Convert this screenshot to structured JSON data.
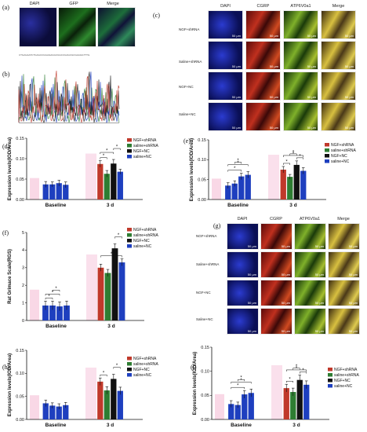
{
  "panels": {
    "a": {
      "label": "(a)",
      "headers": [
        "DAPI",
        "GFP",
        "Merge"
      ]
    },
    "b": {
      "label": "(b)",
      "sequence_text": "CTGAGAATCTGAGCCGGAGAGGCGGCCGAGCGCGAAGGTTTG"
    },
    "c": {
      "label": "(c)",
      "headers": [
        "DAPI",
        "CGRP",
        "ATP6V0a1",
        "Merge"
      ],
      "rows": [
        "NGF+shRNA",
        "Saline+shRNA",
        "NGF+NC",
        "Saline+NC"
      ],
      "scale_text": "50 μm"
    },
    "g": {
      "label": "(g)",
      "headers": [
        "DAPI",
        "CGRP",
        "ATP6V0a1",
        "Merge"
      ],
      "rows": [
        "NGF+shRNA",
        "Saline+shRNA",
        "NGF+NC",
        "Saline+NC"
      ],
      "scale_text": "50 μm"
    }
  },
  "colors": {
    "NGF+shRNA": "#c0392b",
    "saline+shRNA": "#2e7d32",
    "NGF+NC": "#111111",
    "saline+NC": "#1e3fbf",
    "baseline_bar": "#1e3fbf",
    "baseline_bg": "#f6c7dc"
  },
  "chart_data": [
    {
      "id": "d",
      "label": "(d)",
      "type": "bar",
      "ylabel": "Expression levels(IOD/Area)",
      "ylim": [
        0,
        0.15
      ],
      "yticks": [
        0.0,
        0.05,
        0.1,
        0.15
      ],
      "ytick_labels": [
        "0.00",
        "0.05",
        "0.10",
        "0.15"
      ],
      "categories": [
        "Baseline",
        "3 d"
      ],
      "legend": [
        "NGF+shRNA",
        "saline+shRNA",
        "NGF+NC",
        "saline+NC"
      ],
      "series": [
        {
          "name": "NGF+shRNA",
          "values": [
            0.037,
            0.087
          ],
          "errors": [
            0.007,
            0.008
          ]
        },
        {
          "name": "saline+shRNA",
          "values": [
            0.037,
            0.063
          ],
          "errors": [
            0.006,
            0.008
          ]
        },
        {
          "name": "NGF+NC",
          "values": [
            0.04,
            0.088
          ],
          "errors": [
            0.007,
            0.01
          ]
        },
        {
          "name": "saline+NC",
          "values": [
            0.036,
            0.068
          ],
          "errors": [
            0.007,
            0.006
          ]
        }
      ],
      "significance": [
        [
          0,
          1
        ],
        [
          0,
          2
        ],
        [
          2,
          3
        ]
      ]
    },
    {
      "id": "e",
      "label": "(e)",
      "type": "bar",
      "ylabel": "Expression levels(IOD/Area)",
      "ylim": [
        0,
        0.15
      ],
      "yticks": [
        0.0,
        0.05,
        0.1,
        0.15
      ],
      "ytick_labels": [
        "0.00",
        "0.05",
        "0.10",
        "0.15"
      ],
      "categories": [
        "Baseline",
        "3 d"
      ],
      "legend": [
        "NGF+shRNA",
        "saline+shRNA",
        "NGF+NC",
        "saline+NC"
      ],
      "series": [
        {
          "name": "NGF+shRNA",
          "values": [
            0.035,
            0.075
          ],
          "errors": [
            0.007,
            0.008
          ]
        },
        {
          "name": "saline+shRNA",
          "values": [
            0.04,
            0.057
          ],
          "errors": [
            0.007,
            0.006
          ]
        },
        {
          "name": "NGF+NC",
          "values": [
            0.058,
            0.087
          ],
          "errors": [
            0.008,
            0.01
          ]
        },
        {
          "name": "saline+NC",
          "values": [
            0.062,
            0.072
          ],
          "errors": [
            0.008,
            0.008
          ]
        }
      ],
      "significance": [
        [
          0,
          2
        ],
        [
          0,
          3
        ],
        [
          1,
          2
        ],
        [
          0,
          1
        ],
        [
          1,
          2
        ],
        [
          0,
          3
        ],
        [
          2,
          3
        ]
      ]
    },
    {
      "id": "f",
      "label": "(f)",
      "type": "bar",
      "ylabel": "Rat Grimace Scale(RGS)",
      "ylim": [
        0,
        5
      ],
      "yticks": [
        0,
        1,
        2,
        3,
        4,
        5
      ],
      "ytick_labels": [
        "0",
        "1",
        "2",
        "3",
        "4",
        "5"
      ],
      "categories": [
        "Baseline",
        "3 d"
      ],
      "legend": [
        "NGF+shRNA",
        "saline+shRNA",
        "NGF+NC",
        "saline+NC"
      ],
      "series": [
        {
          "name": "NGF+shRNA",
          "values": [
            0.85,
            3.0
          ],
          "errors": [
            0.25,
            0.2
          ]
        },
        {
          "name": "saline+shRNA",
          "values": [
            0.85,
            2.7
          ],
          "errors": [
            0.25,
            0.2
          ]
        },
        {
          "name": "NGF+NC",
          "values": [
            0.8,
            4.1
          ],
          "errors": [
            0.25,
            0.25
          ]
        },
        {
          "name": "saline+NC",
          "values": [
            0.85,
            3.3
          ],
          "errors": [
            0.25,
            0.2
          ]
        }
      ],
      "significance": [
        [
          0,
          1
        ],
        [
          0,
          2
        ],
        [
          1,
          2
        ],
        [
          0,
          3
        ],
        [
          2,
          3
        ]
      ]
    },
    {
      "id": "h",
      "label": "(h)",
      "type": "bar",
      "ylabel": "Expression levels(IOD/Area)",
      "ylim": [
        0,
        0.15
      ],
      "yticks": [
        0.0,
        0.05,
        0.1,
        0.15
      ],
      "ytick_labels": [
        "0.00",
        "0.05",
        "0.10",
        "0.15"
      ],
      "categories": [
        "Baseline",
        "3 d"
      ],
      "legend": [
        "NGF+shRNA",
        "saline+shRNA",
        "NGF+NC",
        "saline+NC"
      ],
      "series": [
        {
          "name": "NGF+shRNA",
          "values": [
            0.035,
            0.082
          ],
          "errors": [
            0.007,
            0.008
          ]
        },
        {
          "name": "saline+shRNA",
          "values": [
            0.03,
            0.063
          ],
          "errors": [
            0.006,
            0.008
          ]
        },
        {
          "name": "NGF+NC",
          "values": [
            0.028,
            0.088
          ],
          "errors": [
            0.006,
            0.01
          ]
        },
        {
          "name": "saline+NC",
          "values": [
            0.031,
            0.062
          ],
          "errors": [
            0.006,
            0.008
          ]
        }
      ],
      "significance": [
        [
          0,
          1
        ],
        [
          2,
          3
        ]
      ]
    },
    {
      "id": "i",
      "label": "(i)",
      "type": "bar",
      "ylabel": "Expression levels(IOD/Area)",
      "ylim": [
        0,
        0.15
      ],
      "yticks": [
        0.0,
        0.05,
        0.1,
        0.15
      ],
      "ytick_labels": [
        "0.00",
        "0.05",
        "0.10",
        "0.15"
      ],
      "categories": [
        "Baseline",
        "3 d"
      ],
      "legend": [
        "NGF+shRNA",
        "saline+shRNA",
        "NGF+NC",
        "saline+NC"
      ],
      "series": [
        {
          "name": "NGF+shRNA",
          "values": [
            0.032,
            0.065
          ],
          "errors": [
            0.007,
            0.008
          ]
        },
        {
          "name": "saline+shRNA",
          "values": [
            0.03,
            0.057
          ],
          "errors": [
            0.006,
            0.008
          ]
        },
        {
          "name": "NGF+NC",
          "values": [
            0.052,
            0.082
          ],
          "errors": [
            0.008,
            0.01
          ]
        },
        {
          "name": "saline+NC",
          "values": [
            0.055,
            0.072
          ],
          "errors": [
            0.008,
            0.008
          ]
        }
      ],
      "significance": [
        [
          0,
          2
        ],
        [
          0,
          3
        ],
        [
          1,
          2
        ],
        [
          0,
          1
        ],
        [
          1,
          2
        ],
        [
          0,
          3
        ],
        [
          2,
          3
        ]
      ]
    }
  ]
}
